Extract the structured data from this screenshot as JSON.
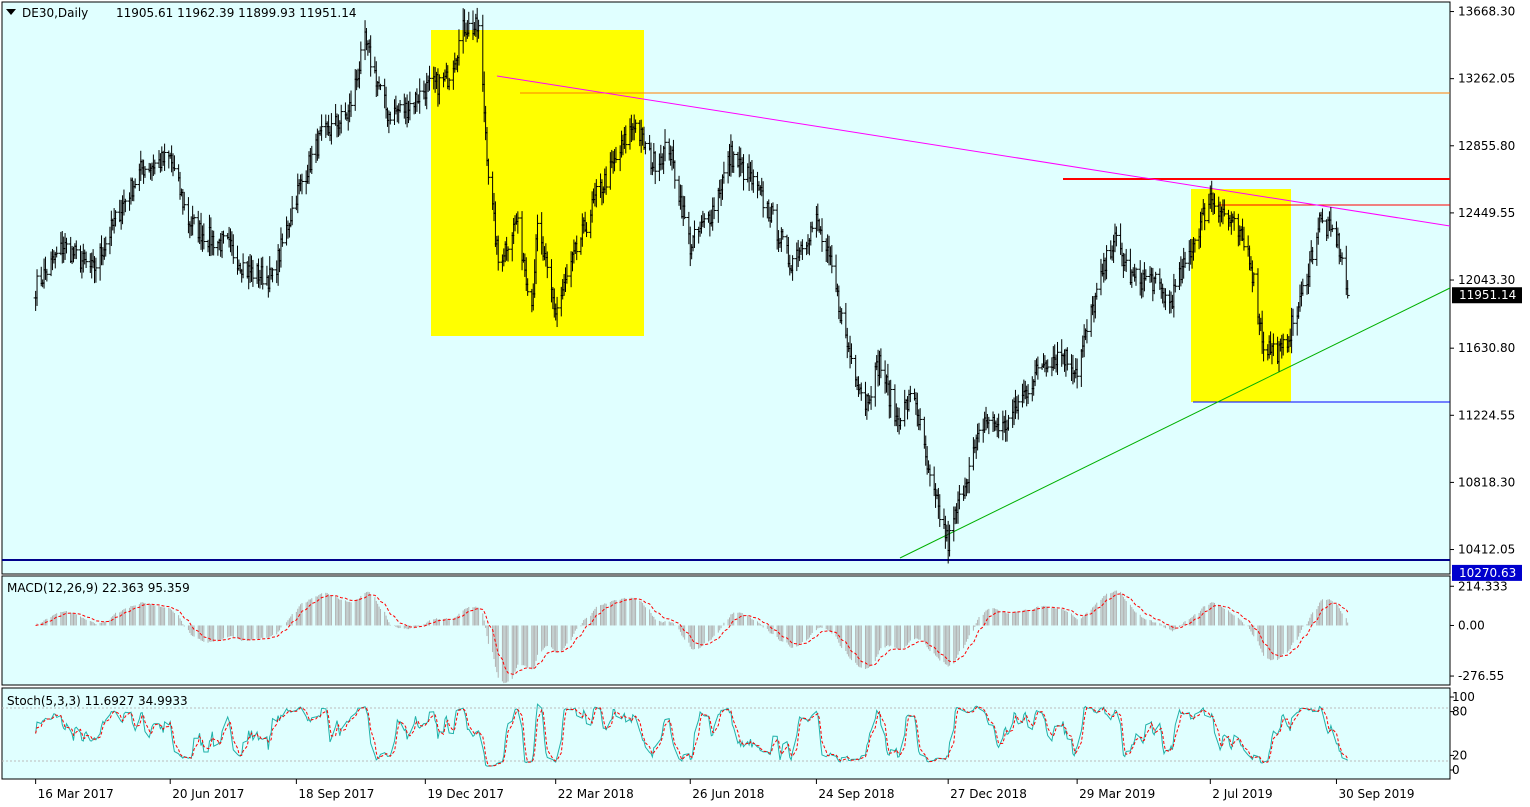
{
  "header": {
    "symbol": "DE30,Daily",
    "ohlc": "11905.61 11962.39 11899.93 11951.14"
  },
  "colors": {
    "background": "#e0ffff",
    "bars": "#000000",
    "zone": "#ffff00",
    "downtrend": "#ff00ff",
    "uptrend": "#00b000",
    "resistance_top": "#ff7f00",
    "resistance_mid": "#ff0000",
    "support": "#0000ff",
    "macd_signal": "#ff0000",
    "macd_hist": "#b0b0b0",
    "stoch_main": "#20b2aa",
    "stoch_signal": "#ff0000"
  },
  "chart_data": [
    {
      "type": "ohlc",
      "name": "main",
      "title": "DE30,Daily",
      "ylim": [
        10270,
        13720
      ],
      "y_ticks": [
        "13668.30",
        "13262.05",
        "12855.80",
        "12449.55",
        "12043.30",
        "11630.80",
        "11224.55",
        "10818.30",
        "10412.05"
      ],
      "price_badges": [
        {
          "label": "11951.14",
          "value": 11951.14,
          "style": "current"
        },
        {
          "label": "10270.63",
          "value": 10270.63,
          "style": "support"
        }
      ],
      "x_labels": [
        "16 Mar 2017",
        "20 Jun 2017",
        "18 Sep 2017",
        "19 Dec 2017",
        "22 Mar 2018",
        "26 Jun 2018",
        "24 Sep 2018",
        "27 Dec 2018",
        "29 Mar 2019",
        "2 Jul 2019",
        "30 Sep 2019"
      ],
      "close_path": [
        [
          "16 Mar 2017",
          12000
        ],
        [
          "5 Apr 2017",
          12250
        ],
        [
          "26 Apr 2017",
          12100
        ],
        [
          "17 May 2017",
          12500
        ],
        [
          "31 May 2017",
          12720
        ],
        [
          "20 Jun 2017",
          12780
        ],
        [
          "3 Jul 2017",
          12400
        ],
        [
          "17 Jul 2017",
          12300
        ],
        [
          "31 Jul 2017",
          12250
        ],
        [
          "14 Aug 2017",
          12100
        ],
        [
          "1 Sep 2017",
          12050
        ],
        [
          "18 Sep 2017",
          12560
        ],
        [
          "5 Oct 2017",
          12900
        ],
        [
          "25 Oct 2017",
          13050
        ],
        [
          "6 Nov 2017",
          13480
        ],
        [
          "22 Nov 2017",
          13050
        ],
        [
          "5 Dec 2017",
          13080
        ],
        [
          "19 Dec 2017",
          13200
        ],
        [
          "3 Jan 2018",
          13250
        ],
        [
          "16 Jan 2018",
          13580
        ],
        [
          "26 Jan 2018",
          13560
        ],
        [
          "2 Feb 2018",
          12700
        ],
        [
          "9 Feb 2018",
          12150
        ],
        [
          "22 Feb 2018",
          12400
        ],
        [
          "5 Mar 2018",
          11900
        ],
        [
          "9 Mar 2018",
          12350
        ],
        [
          "22 Mar 2018",
          11850
        ],
        [
          "5 Apr 2018",
          12200
        ],
        [
          "20 Apr 2018",
          12550
        ],
        [
          "3 May 2018",
          12750
        ],
        [
          "17 May 2018",
          13000
        ],
        [
          "30 May 2018",
          12750
        ],
        [
          "11 Jun 2018",
          12850
        ],
        [
          "26 Jun 2018",
          12250
        ],
        [
          "11 Jul 2018",
          12450
        ],
        [
          "25 Jul 2018",
          12800
        ],
        [
          "8 Aug 2018",
          12650
        ],
        [
          "22 Aug 2018",
          12450
        ],
        [
          "5 Sep 2018",
          12150
        ],
        [
          "24 Sep 2018",
          12400
        ],
        [
          "5 Oct 2018",
          12100
        ],
        [
          "16 Oct 2018",
          11650
        ],
        [
          "29 Oct 2018",
          11300
        ],
        [
          "8 Nov 2018",
          11550
        ],
        [
          "20 Nov 2018",
          11200
        ],
        [
          "3 Dec 2018",
          11350
        ],
        [
          "13 Dec 2018",
          10850
        ],
        [
          "27 Dec 2018",
          10450
        ],
        [
          "7 Jan 2019",
          10800
        ],
        [
          "22 Jan 2019",
          11200
        ],
        [
          "5 Feb 2019",
          11150
        ],
        [
          "19 Feb 2019",
          11350
        ],
        [
          "5 Mar 2019",
          11550
        ],
        [
          "18 Mar 2019",
          11600
        ],
        [
          "29 Mar 2019",
          11500
        ],
        [
          "10 Apr 2019",
          11900
        ],
        [
          "24 Apr 2019",
          12300
        ],
        [
          "7 May 2019",
          12050
        ],
        [
          "21 May 2019",
          12050
        ],
        [
          "3 Jun 2019",
          11900
        ],
        [
          "17 Jun 2019",
          12200
        ],
        [
          "2 Jul 2019",
          12550
        ],
        [
          "16 Jul 2019",
          12400
        ],
        [
          "30 Jul 2019",
          12200
        ],
        [
          "9 Aug 2019",
          11650
        ],
        [
          "22 Aug 2019",
          11600
        ],
        [
          "4 Sep 2019",
          11900
        ],
        [
          "18 Sep 2019",
          12400
        ],
        [
          "30 Sep 2019",
          12300
        ],
        [
          "3 Oct 2019",
          12200
        ],
        [
          "8 Oct 2019",
          11950
        ]
      ],
      "grid": false
    },
    {
      "type": "line",
      "name": "macd",
      "title": "MACD(12,26,9) 22.363 95.359",
      "ylim": [
        -320,
        265
      ],
      "y_ticks": [
        "214.333",
        "0.00",
        "-276.55"
      ],
      "grid": false
    },
    {
      "type": "line",
      "name": "stochastic",
      "title": "Stoch(5,3,3) 11.6927 34.9933",
      "ylim": [
        0,
        100
      ],
      "y_ticks": [
        "100",
        "80",
        "20",
        "0"
      ],
      "grid": false
    }
  ]
}
